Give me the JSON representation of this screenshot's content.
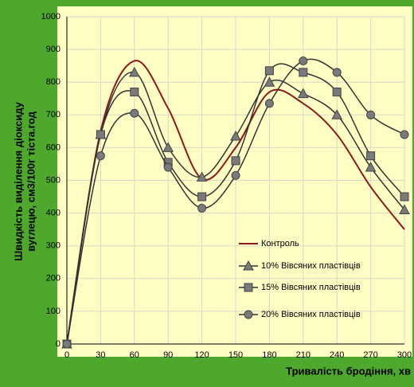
{
  "chart_data": {
    "type": "line",
    "ylabel": [
      "Швидкість виділення діоксиду",
      "вуглецю, см3/100г тіста.год"
    ],
    "xlabel": "Тривалість бродіння, хв",
    "x": [
      0,
      30,
      60,
      90,
      120,
      150,
      180,
      210,
      240,
      270,
      300
    ],
    "series": [
      {
        "name": "Контроль",
        "color": "#8b1a1a",
        "marker": "none",
        "values": [
          0,
          650,
          865,
          720,
          505,
          600,
          770,
          735,
          640,
          480,
          350
        ]
      },
      {
        "name": "10% Вівсяних пластівців",
        "color": "#333333",
        "marker": "triangle",
        "values": [
          0,
          640,
          830,
          600,
          510,
          635,
          800,
          765,
          700,
          540,
          410
        ]
      },
      {
        "name": "15% Вівсяних пластівців",
        "color": "#333333",
        "marker": "square",
        "values": [
          0,
          640,
          770,
          555,
          450,
          560,
          835,
          830,
          770,
          575,
          450
        ]
      },
      {
        "name": "20% Вівсяних пластівців",
        "color": "#333333",
        "marker": "circle",
        "values": [
          0,
          575,
          705,
          540,
          415,
          515,
          735,
          865,
          830,
          700,
          640
        ]
      }
    ],
    "xlim": [
      0,
      300
    ],
    "xticks": [
      0,
      30,
      60,
      90,
      120,
      150,
      180,
      210,
      240,
      270,
      300
    ],
    "ylim": [
      0,
      1000
    ],
    "yticks": [
      0,
      100,
      200,
      300,
      400,
      500,
      600,
      700,
      800,
      900,
      1000
    ],
    "grid": true,
    "legend": "lower right"
  }
}
